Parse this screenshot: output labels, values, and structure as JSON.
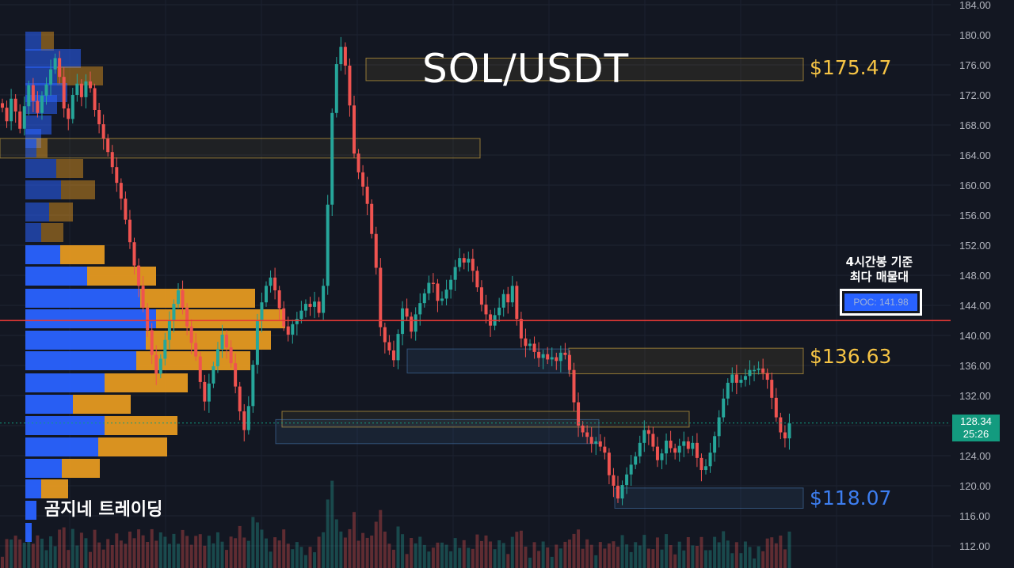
{
  "title": "SOL/USDT",
  "watermark": "곰지네 트레이딩",
  "poc_caption": [
    "4시간봉 기준",
    "최다 매물대"
  ],
  "poc_label": "POC: 141.98",
  "last_price": "128.34",
  "countdown": "25:26",
  "levels": [
    {
      "label": "$175.47",
      "color": "#f6c445"
    },
    {
      "label": "$136.63",
      "color": "#f6c445"
    },
    {
      "label": "$118.07",
      "color": "#3d7ef0"
    }
  ],
  "colors": {
    "up": "#26a69a",
    "down": "#ef5350",
    "background": "#131722",
    "poc_line": "#e53935",
    "vp_up": "#2962ff",
    "vp_down": "#f0a020"
  },
  "chart_data": {
    "type": "candlestick",
    "title": "SOL/USDT",
    "ylim": [
      111,
      185
    ],
    "y_ticks": [
      "184.00",
      "180.00",
      "176.00",
      "172.00",
      "168.00",
      "164.00",
      "160.00",
      "156.00",
      "152.00",
      "148.00",
      "144.00",
      "140.00",
      "136.00",
      "132.00",
      "128.00",
      "124.00",
      "120.00",
      "116.00",
      "112.00"
    ],
    "poc": 141.98,
    "current_price": 128.34,
    "key_levels": [
      175.47,
      136.63,
      118.07
    ],
    "zones": [
      {
        "type": "supply",
        "low": 173.9,
        "high": 176.9
      },
      {
        "type": "supply",
        "low": 163.6,
        "high": 166.2
      },
      {
        "type": "supply",
        "low": 134.9,
        "high": 138.3
      },
      {
        "type": "supply",
        "low": 127.8,
        "high": 129.9
      },
      {
        "type": "demand",
        "low": 135.0,
        "high": 138.2
      },
      {
        "type": "demand",
        "low": 125.6,
        "high": 128.8
      },
      {
        "type": "demand",
        "low": 117.0,
        "high": 119.7
      }
    ],
    "closes": [
      170.3,
      168.5,
      171.5,
      169.8,
      167.5,
      170.5,
      173.3,
      171.2,
      169.6,
      171.9,
      173.4,
      175.4,
      176.9,
      174.4,
      170.2,
      168.8,
      172.0,
      173.5,
      171.7,
      173.8,
      172.9,
      170.0,
      168.1,
      166.2,
      164.4,
      162.4,
      160.3,
      158.2,
      155.4,
      152.4,
      149.3,
      146.6,
      143.7,
      140.7,
      137.4,
      134.9,
      136.9,
      139.4,
      141.9,
      144.2,
      146.0,
      143.7,
      141.2,
      139.0,
      137.2,
      133.8,
      131.2,
      133.6,
      135.9,
      138.2,
      140.1,
      138.4,
      136.3,
      133.2,
      129.9,
      127.4,
      130.6,
      136.1,
      141.9,
      144.4,
      146.6,
      147.7,
      146.0,
      143.6,
      141.2,
      140.1,
      141.5,
      142.2,
      143.3,
      144.2,
      143.8,
      144.5,
      143.0,
      146.6,
      157.4,
      169.6,
      176.1,
      178.4,
      175.9,
      170.6,
      164.2,
      161.7,
      159.8,
      157.5,
      153.5,
      149.0,
      141.1,
      139.1,
      138.0,
      136.7,
      140.2,
      143.6,
      142.5,
      140.5,
      142.8,
      144.3,
      145.6,
      147.0,
      146.9,
      144.6,
      144.9,
      146.1,
      147.4,
      149.1,
      150.3,
      149.7,
      150.2,
      148.6,
      146.4,
      144.1,
      142.8,
      141.3,
      142.7,
      143.7,
      145.5,
      144.4,
      146.6,
      142.2,
      139.6,
      138.6,
      138.9,
      137.8,
      137.0,
      137.5,
      136.8,
      137.1,
      136.6,
      137.7,
      137.4,
      135.4,
      131.1,
      128.0,
      127.1,
      126.5,
      125.6,
      125.9,
      125.2,
      124.4,
      121.4,
      120.0,
      118.3,
      120.1,
      121.5,
      122.8,
      123.9,
      125.7,
      127.4,
      126.9,
      125.2,
      123.4,
      124.3,
      126.0,
      125.0,
      124.4,
      125.3,
      125.9,
      124.9,
      125.7,
      123.7,
      122.1,
      122.6,
      124.4,
      126.6,
      129.1,
      131.6,
      133.7,
      134.8,
      133.7,
      134.1,
      134.6,
      135.4,
      135.4,
      135.6,
      135.0,
      134.1,
      131.7,
      129.1,
      127.1,
      126.3,
      128.3
    ]
  }
}
